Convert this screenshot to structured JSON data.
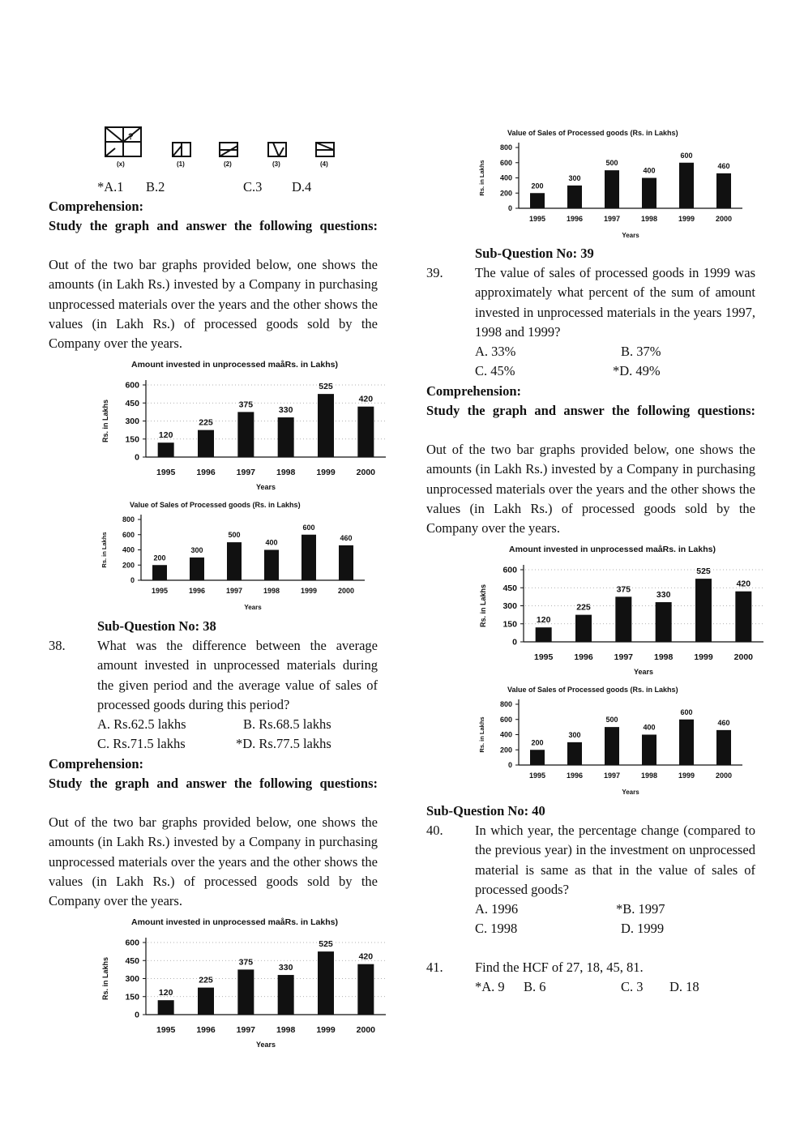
{
  "figure_question": {
    "figure_labels": [
      "(x)",
      "(1)",
      "(2)",
      "(3)",
      "(4)"
    ],
    "question_mark": "?",
    "options": [
      "*A.1",
      "B.2",
      "C.3",
      "D.4"
    ]
  },
  "comprehension": {
    "heading": "Comprehension:",
    "instruction": "Study the graph and answer the following questions:",
    "passage": "Out of the two bar graphs provided below, one shows the amounts (in Lakh Rs.) invested by a Company in purchasing unprocessed materials over the years and the other shows the values (in Lakh Rs.) of processed goods sold by the Company over the years."
  },
  "chart_data": [
    {
      "id": "investment",
      "type": "bar",
      "title": "Amount invested in unprocessed maåRs. in Lakhs)",
      "xlabel": "Years",
      "ylabel": "Rs. in Lakhs",
      "categories": [
        "1995",
        "1996",
        "1997",
        "1998",
        "1999",
        "2000"
      ],
      "values": [
        120,
        225,
        375,
        330,
        525,
        420
      ],
      "yticks": [
        0,
        150,
        300,
        450,
        600
      ],
      "ylim": [
        0,
        600
      ],
      "bar_color": "#111111",
      "grid": "dotted"
    },
    {
      "id": "sales",
      "type": "bar",
      "title": "Value of Sales of Processed goods (Rs. in Lakhs)",
      "xlabel": "Years",
      "ylabel": "Rs. in Lakhs",
      "categories": [
        "1995",
        "1996",
        "1997",
        "1998",
        "1999",
        "2000"
      ],
      "values": [
        200,
        300,
        500,
        400,
        600,
        460
      ],
      "yticks": [
        0,
        200,
        400,
        600,
        800
      ],
      "ylim": [
        0,
        800
      ],
      "bar_color": "#111111",
      "grid": "none"
    }
  ],
  "q38": {
    "sub_heading": "Sub-Question No: 38",
    "number": "38.",
    "text": "What was the difference between the average amount invested in unprocessed materials during the given period and the average value of sales of processed goods during this period?",
    "options": [
      "A. Rs.62.5 lakhs",
      "B. Rs.68.5 lakhs",
      "C. Rs.71.5 lakhs",
      "*D. Rs.77.5 lakhs"
    ]
  },
  "q39": {
    "sub_heading": "Sub-Question No: 39",
    "number": "39.",
    "text": "The value of sales of processed goods in 1999 was approximately what percent of the sum of amount invested in unprocessed materials in the years 1997, 1998 and 1999?",
    "options": [
      "A. 33%",
      "B. 37%",
      "C. 45%",
      "*D. 49%"
    ]
  },
  "q40": {
    "sub_heading": "Sub-Question No: 40",
    "number": "40.",
    "text": "In which year, the percentage change (compared to the previous year) in the investment on unprocessed material is same as that in the value of sales of processed goods?",
    "options": [
      "A. 1996",
      "*B. 1997",
      "C. 1998",
      "D. 1999"
    ]
  },
  "q41": {
    "number": "41.",
    "text": "Find the HCF of 27, 18, 45, 81.",
    "options": [
      "*A. 9",
      "B. 6",
      "C. 3",
      "D. 18"
    ]
  }
}
